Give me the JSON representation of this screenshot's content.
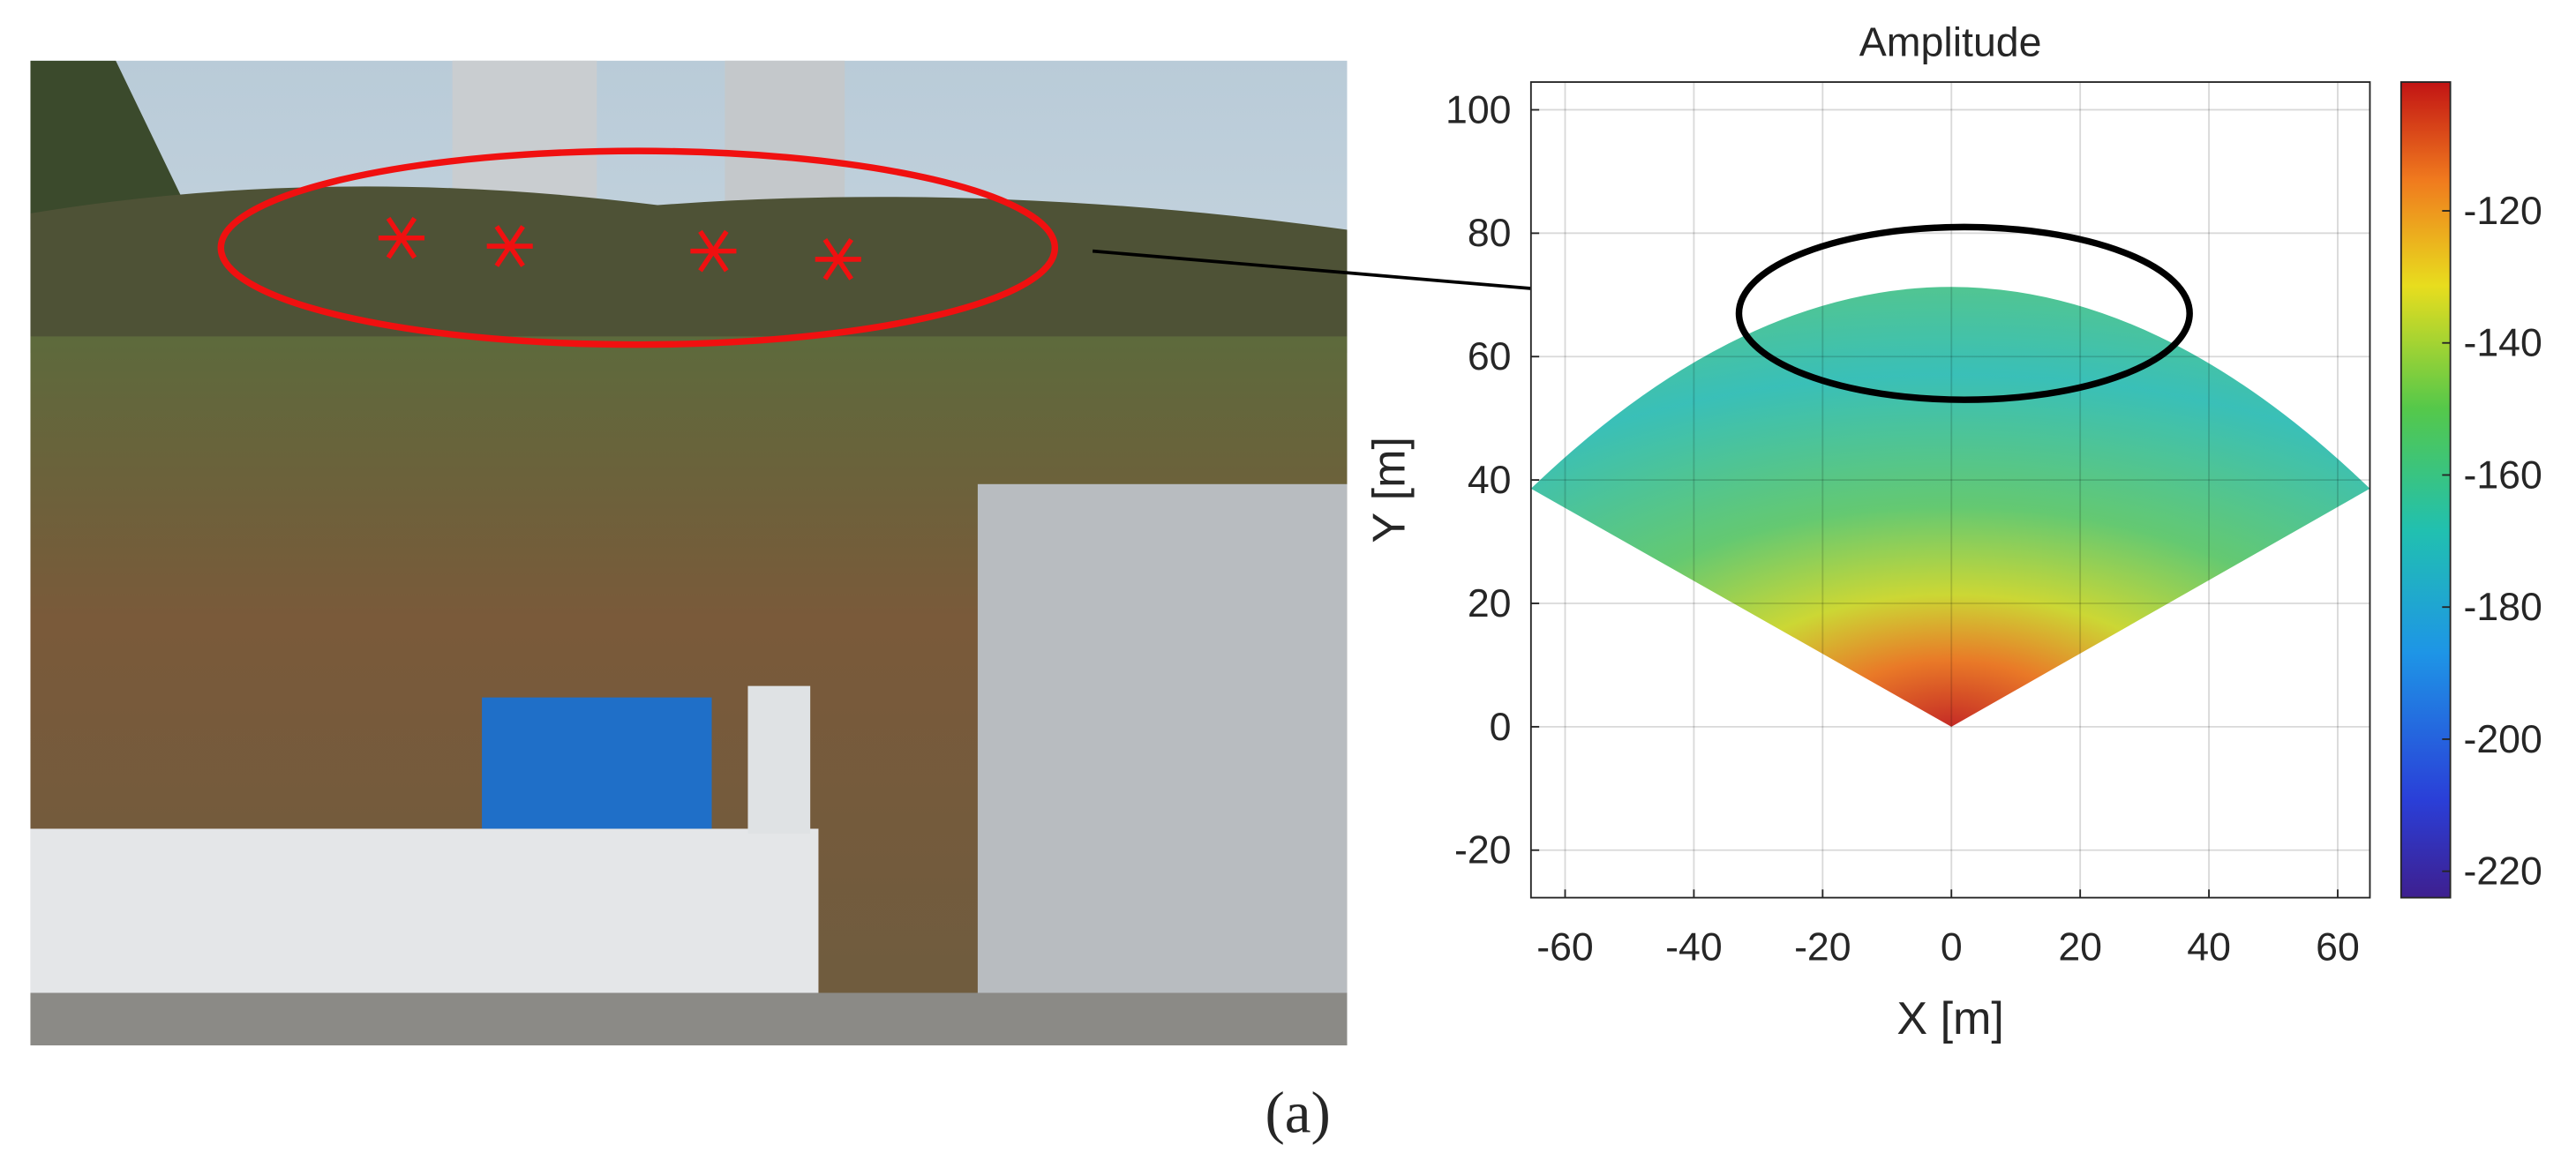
{
  "chart_data": {
    "type": "heatmap",
    "title": "Amplitude",
    "xlabel": "X [m]",
    "ylabel": "Y [m]",
    "xlim": [
      -65.3,
      65
    ],
    "ylim": [
      -27.7,
      104.5
    ],
    "xticks": [
      -60,
      -40,
      -20,
      0,
      20,
      40,
      60
    ],
    "yticks": [
      -20,
      0,
      20,
      40,
      60,
      80,
      100
    ],
    "clim": [
      -224,
      -100.5
    ],
    "cticks": [
      -220,
      -200,
      -180,
      -160,
      -140,
      -120
    ],
    "grid": true
  },
  "caption": "(a)"
}
